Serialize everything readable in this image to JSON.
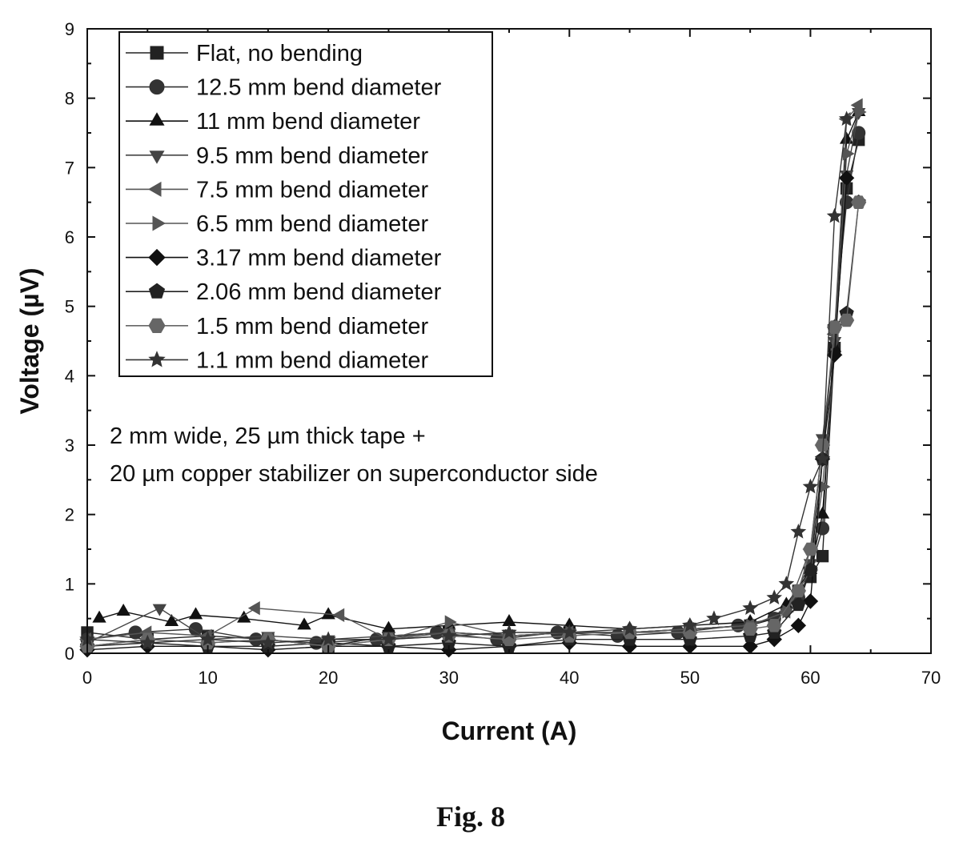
{
  "figure": {
    "caption": "Fig. 8"
  },
  "annotation": {
    "line1": "2 mm wide, 25 µm thick tape +",
    "line2": "20 µm copper stabilizer on superconductor side"
  },
  "chart_data": {
    "type": "line",
    "title": "",
    "xlabel": "Current (A)",
    "ylabel": "Voltage (µV)",
    "xlim": [
      0,
      70
    ],
    "ylim": [
      0,
      9
    ],
    "xticks": [
      0,
      10,
      20,
      30,
      40,
      50,
      60,
      70
    ],
    "yticks": [
      0,
      1,
      2,
      3,
      4,
      5,
      6,
      7,
      8,
      9
    ],
    "grid": false,
    "legend_position": "top-left",
    "series": [
      {
        "name": "Flat, no bending",
        "marker": "square",
        "color": "#222222",
        "x": [
          0,
          5,
          10,
          15,
          20,
          25,
          30,
          35,
          40,
          45,
          50,
          55,
          57,
          59,
          60,
          61,
          62,
          63,
          64
        ],
        "y": [
          0.3,
          0.2,
          0.25,
          0.2,
          0.1,
          0.25,
          0.3,
          0.25,
          0.3,
          0.3,
          0.35,
          0.4,
          0.5,
          0.9,
          1.1,
          1.4,
          4.4,
          6.7,
          7.4
        ]
      },
      {
        "name": "12.5 mm bend diameter",
        "marker": "circle",
        "color": "#333333",
        "x": [
          0,
          4,
          9,
          14,
          19,
          24,
          29,
          34,
          39,
          44,
          49,
          54,
          57,
          59,
          60,
          61,
          62,
          63,
          64
        ],
        "y": [
          0.2,
          0.3,
          0.35,
          0.2,
          0.15,
          0.2,
          0.3,
          0.2,
          0.3,
          0.25,
          0.3,
          0.4,
          0.5,
          0.8,
          1.2,
          1.8,
          4.7,
          6.5,
          7.5
        ]
      },
      {
        "name": "11 mm bend diameter",
        "marker": "triangle-up",
        "color": "#111111",
        "x": [
          1,
          3,
          7,
          9,
          13,
          18,
          20,
          25,
          30,
          35,
          40,
          45,
          50,
          55,
          58,
          60,
          61,
          62,
          63,
          64
        ],
        "y": [
          0.5,
          0.6,
          0.45,
          0.55,
          0.5,
          0.4,
          0.55,
          0.35,
          0.4,
          0.45,
          0.4,
          0.35,
          0.4,
          0.45,
          0.7,
          1.2,
          2.0,
          4.4,
          7.4,
          7.8
        ]
      },
      {
        "name": "9.5 mm bend diameter",
        "marker": "triangle-down",
        "color": "#444444",
        "x": [
          0,
          6,
          10,
          15,
          20,
          25,
          30,
          35,
          40,
          45,
          50,
          55,
          58,
          60,
          61,
          62,
          63,
          64
        ],
        "y": [
          0.15,
          0.65,
          0.2,
          0.25,
          0.2,
          0.25,
          0.3,
          0.25,
          0.3,
          0.3,
          0.35,
          0.4,
          0.6,
          1.3,
          3.1,
          4.5,
          6.9,
          7.8
        ]
      },
      {
        "name": "7.5 mm bend diameter",
        "marker": "triangle-left",
        "color": "#555555",
        "x": [
          0,
          5,
          10,
          14,
          21,
          25,
          30,
          35,
          40,
          45,
          50,
          55,
          58,
          60,
          61,
          62,
          63,
          64
        ],
        "y": [
          0.2,
          0.3,
          0.25,
          0.65,
          0.55,
          0.2,
          0.3,
          0.25,
          0.3,
          0.3,
          0.35,
          0.4,
          0.6,
          1.5,
          3.0,
          4.6,
          7.7,
          7.9
        ]
      },
      {
        "name": "6.5 mm bend diameter",
        "marker": "triangle-right",
        "color": "#555555",
        "x": [
          0,
          5,
          10,
          15,
          20,
          25,
          30,
          35,
          40,
          45,
          50,
          55,
          58,
          60,
          61,
          62,
          63,
          64
        ],
        "y": [
          0.1,
          0.2,
          0.15,
          0.2,
          0.1,
          0.2,
          0.45,
          0.25,
          0.3,
          0.3,
          0.35,
          0.4,
          0.6,
          1.2,
          2.4,
          4.3,
          7.2,
          7.8
        ]
      },
      {
        "name": "3.17 mm bend diameter",
        "marker": "diamond",
        "color": "#111111",
        "x": [
          0,
          5,
          10,
          15,
          20,
          25,
          30,
          35,
          40,
          45,
          50,
          55,
          57,
          59,
          60,
          61,
          62,
          63
        ],
        "y": [
          0.05,
          0.1,
          0.1,
          0.05,
          0.1,
          0.1,
          0.05,
          0.1,
          0.15,
          0.1,
          0.1,
          0.1,
          0.2,
          0.4,
          0.75,
          2.8,
          4.3,
          6.85
        ]
      },
      {
        "name": "2.06 mm bend diameter",
        "marker": "pentagon",
        "color": "#222222",
        "x": [
          0,
          5,
          10,
          15,
          20,
          25,
          30,
          35,
          40,
          45,
          50,
          55,
          57,
          59,
          60,
          61,
          62,
          63,
          64
        ],
        "y": [
          0.1,
          0.15,
          0.1,
          0.1,
          0.15,
          0.1,
          0.15,
          0.1,
          0.2,
          0.2,
          0.2,
          0.25,
          0.3,
          0.7,
          1.2,
          2.8,
          4.7,
          4.9,
          6.5
        ]
      },
      {
        "name": "1.5 mm bend diameter",
        "marker": "hexagon",
        "color": "#666666",
        "x": [
          0,
          5,
          10,
          15,
          20,
          25,
          30,
          35,
          40,
          45,
          50,
          55,
          57,
          59,
          60,
          61,
          62,
          63,
          64
        ],
        "y": [
          0.1,
          0.2,
          0.15,
          0.2,
          0.1,
          0.2,
          0.25,
          0.2,
          0.25,
          0.3,
          0.3,
          0.35,
          0.4,
          0.9,
          1.5,
          3.0,
          4.7,
          4.8,
          6.5
        ]
      },
      {
        "name": "1.1 mm bend diameter",
        "marker": "star",
        "color": "#333333",
        "x": [
          0,
          5,
          10,
          15,
          20,
          25,
          30,
          35,
          40,
          45,
          50,
          52,
          55,
          57,
          58,
          59,
          60,
          61,
          62,
          63
        ],
        "y": [
          0.2,
          0.15,
          0.2,
          0.15,
          0.2,
          0.2,
          0.25,
          0.3,
          0.3,
          0.35,
          0.4,
          0.5,
          0.65,
          0.8,
          1.0,
          1.75,
          2.4,
          2.8,
          6.3,
          7.7
        ]
      }
    ]
  }
}
